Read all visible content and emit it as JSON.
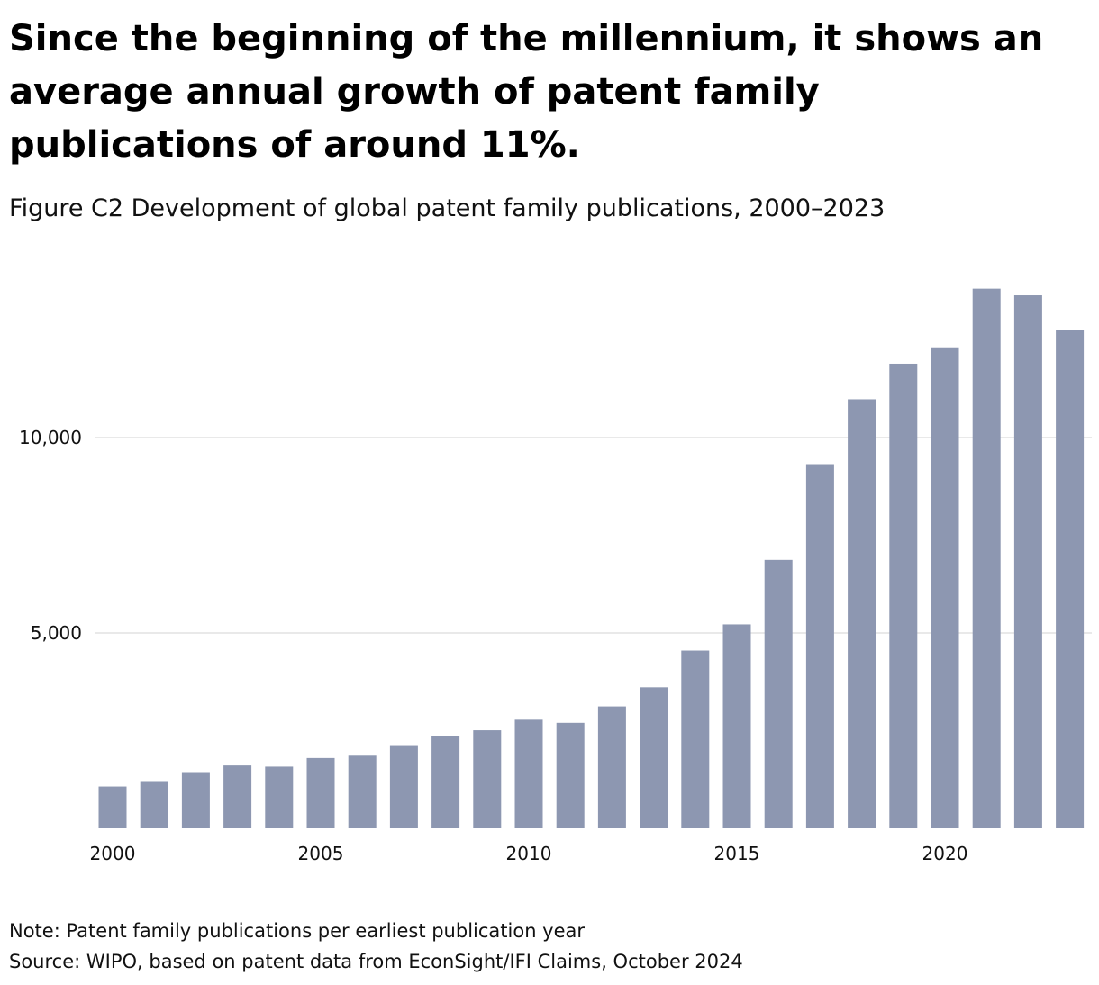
{
  "headline": "Since the beginning of the millennium, it shows an average annual growth of patent family publications of around 11%.",
  "subtitle": "Figure C2 Development of global patent family publications, 2000–2023",
  "note": "Note: Patent family publications per earliest publication year",
  "source": "Source: WIPO, based on patent data from EconSight/IFI Claims, October 2024",
  "colors": {
    "bar": "#8d97b1",
    "gridline": "#e2e2e2",
    "text": "#111111"
  },
  "chart_data": {
    "type": "bar",
    "title": "Figure C2 Development of global patent family publications, 2000–2023",
    "xlabel": "",
    "ylabel": "",
    "categories": [
      2000,
      2001,
      2002,
      2003,
      2004,
      2005,
      2006,
      2007,
      2008,
      2009,
      2010,
      2011,
      2012,
      2013,
      2014,
      2015,
      2016,
      2017,
      2018,
      2019,
      2020,
      2021,
      2022,
      2023
    ],
    "values": [
      1070,
      1210,
      1440,
      1610,
      1580,
      1800,
      1860,
      2130,
      2370,
      2510,
      2780,
      2700,
      3120,
      3610,
      4550,
      5220,
      6870,
      9320,
      10980,
      11890,
      12310,
      13810,
      13640,
      12760
    ],
    "ylim": [
      0,
      14000
    ],
    "y_ticks": [
      5000,
      10000
    ],
    "y_tick_labels": [
      "5,000",
      "10,000"
    ],
    "x_ticks": [
      2000,
      2005,
      2010,
      2015,
      2020
    ],
    "x_tick_labels": [
      "2000",
      "2005",
      "2010",
      "2015",
      "2020"
    ],
    "grid": true,
    "legend": "none"
  }
}
